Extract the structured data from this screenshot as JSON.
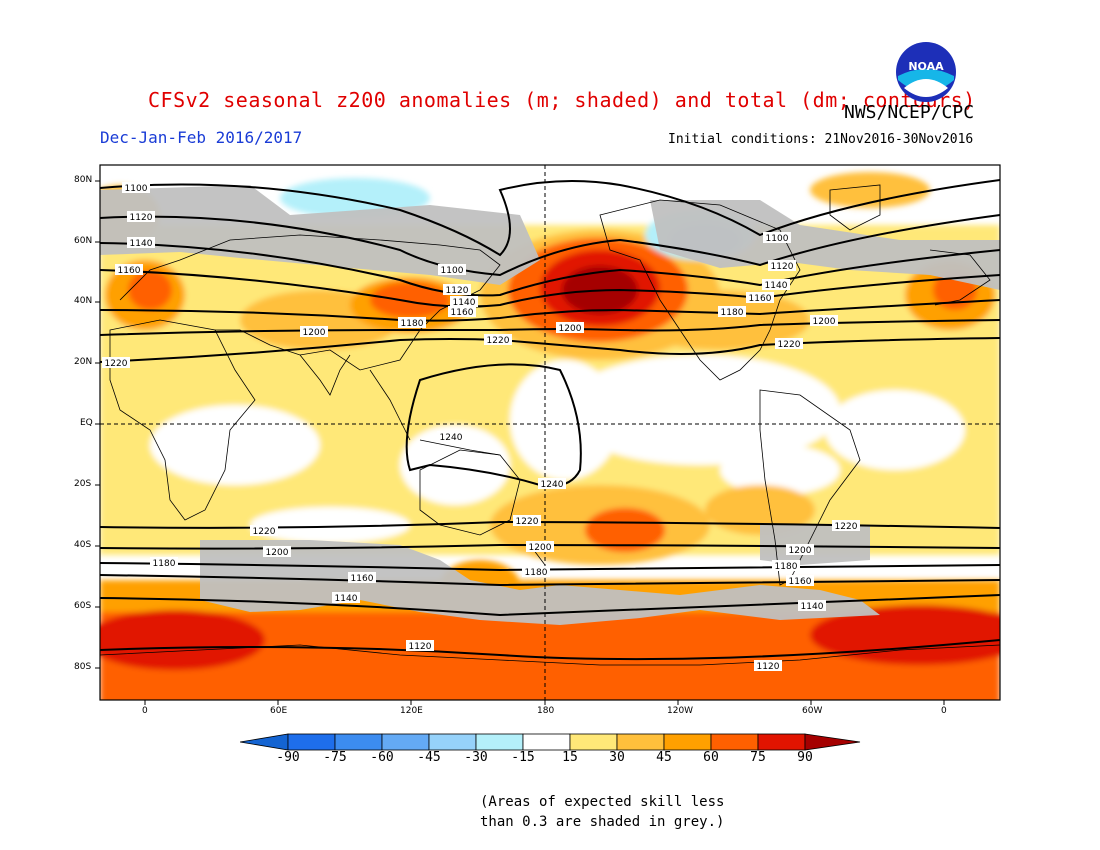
{
  "header": {
    "title": "CFSv2 seasonal z200 anomalies (m; shaded) and total (dm; contours)",
    "agency": "NWS/NCEP/CPC",
    "period": "Dec-Jan-Feb 2016/2017",
    "initial_conditions": "Initial conditions: 21Nov2016-30Nov2016",
    "logo_text": "NOAA"
  },
  "axes": {
    "lat_labels": [
      "80N",
      "60N",
      "40N",
      "20N",
      "EQ",
      "20S",
      "40S",
      "60S",
      "80S"
    ],
    "lon_labels": [
      "0",
      "60E",
      "120E",
      "180",
      "120W",
      "60W",
      "0"
    ]
  },
  "colorbar": {
    "labels": [
      "-90",
      "-75",
      "-60",
      "-45",
      "-30",
      "-15",
      "15",
      "30",
      "45",
      "60",
      "75",
      "90"
    ],
    "colors": {
      "lt-90": "#1464d2",
      "-90:-75": "#1e6eeb",
      "-75:-60": "#3c8cf0",
      "-60:-45": "#64aaf5",
      "-45:-30": "#96d2fa",
      "-30:-15": "#b4f0fa",
      "-15:15": "#ffffff",
      "15:30": "#ffe878",
      "30:45": "#ffc03c",
      "45:60": "#ffa000",
      "60:75": "#ff6000",
      "75:90": "#e11400",
      "gt90": "#a50000"
    }
  },
  "contour_labels": {
    "north_1100": "1100",
    "north_1120": "1120",
    "north_1140": "1140",
    "north_1160": "1160",
    "north_1180": "1180",
    "north_1200": "1200",
    "north_1220": "1220",
    "tropics_1240": "1240",
    "south_1220": "1220",
    "south_1200": "1200",
    "south_1180": "1180",
    "south_1160": "1160",
    "south_1140": "1140",
    "south_1120": "1120"
  },
  "skill_note": {
    "line1": "(Areas of expected skill less",
    "line2": "than 0.3 are shaded in grey.)"
  }
}
